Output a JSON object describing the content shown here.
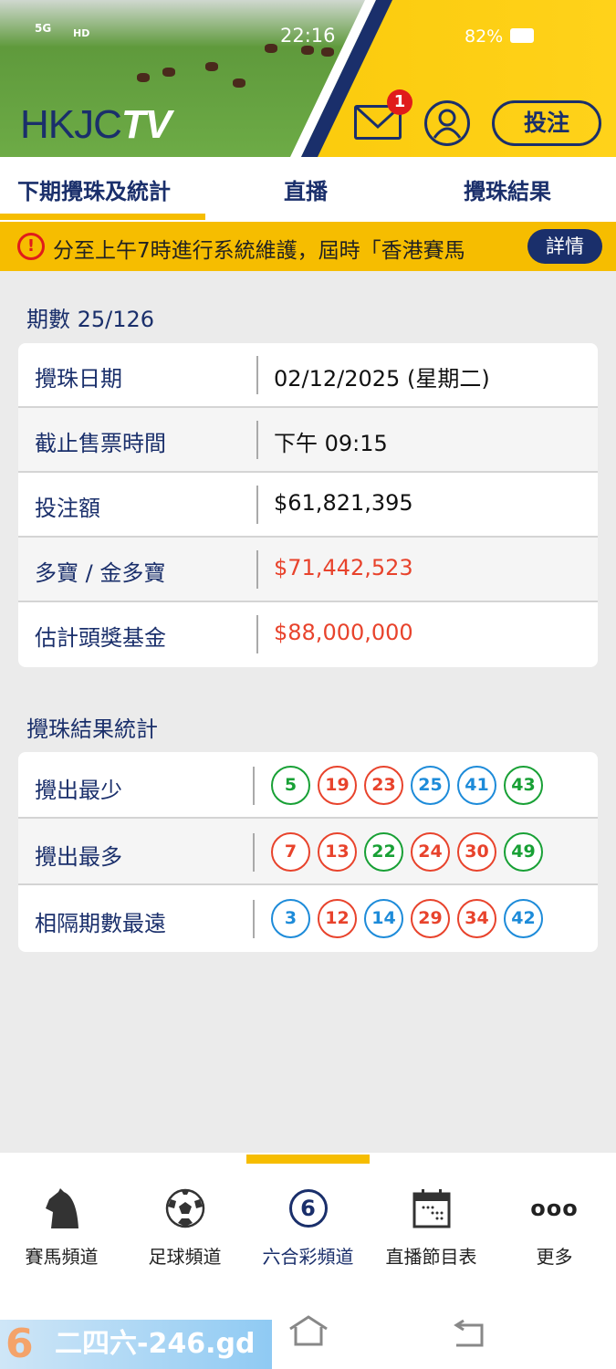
{
  "status_bar": {
    "network": "5G",
    "hd": "HD",
    "time": "22:16",
    "battery": "82%"
  },
  "header": {
    "logo": "HKJC",
    "logo_tv": "TV",
    "mail_badge": "1",
    "bet_label": "投注"
  },
  "tabs": [
    {
      "label": "下期攪珠及統計",
      "active": true
    },
    {
      "label": "直播"
    },
    {
      "label": "攪珠結果"
    }
  ],
  "notice": {
    "text": "分至上午7時進行系統維護，屆時「香港賽馬",
    "detail_label": "詳情"
  },
  "draw": {
    "title": "期數 25/126",
    "rows": [
      {
        "label": "攪珠日期",
        "value": "02/12/2025 (星期二)",
        "highlight": false
      },
      {
        "label": "截止售票時間",
        "value": "下午 09:15",
        "highlight": false
      },
      {
        "label": "投注額",
        "value": "$61,821,395",
        "highlight": false
      },
      {
        "label": "多寶 / 金多寶",
        "value": "$71,442,523",
        "highlight": true
      },
      {
        "label": "估計頭獎基金",
        "value": "$88,000,000",
        "highlight": true
      }
    ]
  },
  "stats": {
    "title": "攪珠結果統計",
    "rows": [
      {
        "label": "攪出最少",
        "balls": [
          {
            "n": "5",
            "c": "green"
          },
          {
            "n": "19",
            "c": "red"
          },
          {
            "n": "23",
            "c": "red"
          },
          {
            "n": "25",
            "c": "blue"
          },
          {
            "n": "41",
            "c": "blue"
          },
          {
            "n": "43",
            "c": "green"
          }
        ]
      },
      {
        "label": "攪出最多",
        "balls": [
          {
            "n": "7",
            "c": "red"
          },
          {
            "n": "13",
            "c": "red"
          },
          {
            "n": "22",
            "c": "green"
          },
          {
            "n": "24",
            "c": "red"
          },
          {
            "n": "30",
            "c": "red"
          },
          {
            "n": "49",
            "c": "green"
          }
        ]
      },
      {
        "label": "相隔期數最遠",
        "balls": [
          {
            "n": "3",
            "c": "blue"
          },
          {
            "n": "12",
            "c": "red"
          },
          {
            "n": "14",
            "c": "blue"
          },
          {
            "n": "29",
            "c": "red"
          },
          {
            "n": "34",
            "c": "red"
          },
          {
            "n": "42",
            "c": "blue"
          }
        ]
      }
    ]
  },
  "colors": {
    "red": "#e8432c",
    "blue": "#1d8bd9",
    "green": "#18a035",
    "navy": "#1a2f6b",
    "yellow": "#f6bd00"
  },
  "bottom_nav": [
    {
      "label": "賽馬頻道",
      "icon": "horse-icon"
    },
    {
      "label": "足球頻道",
      "icon": "soccer-ball-icon"
    },
    {
      "label": "六合彩頻道",
      "icon": "mark-six-icon",
      "active": true,
      "icon_text": "6"
    },
    {
      "label": "直播節目表",
      "icon": "calendar-icon"
    },
    {
      "label": "更多",
      "icon": "more-icon",
      "icon_text": "ooo"
    }
  ],
  "watermark": "二四六-246.gd"
}
